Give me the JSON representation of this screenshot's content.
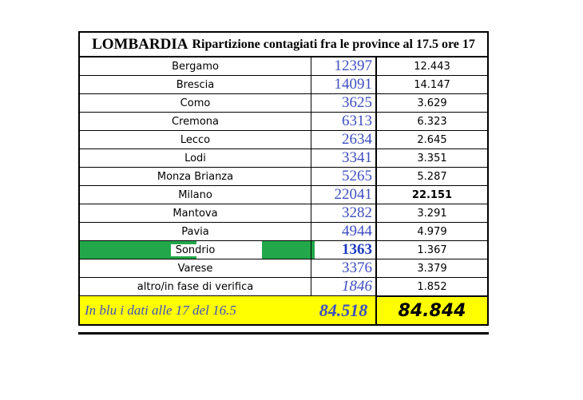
{
  "title": {
    "region": "LOMBARDIA",
    "subtitle": "Ripartizione contagiati fra le province al 17.5 ore 17"
  },
  "rows": [
    {
      "province": "Bergamo",
      "old": "12397",
      "new": "12.443"
    },
    {
      "province": "Brescia",
      "old": "14091",
      "new": "14.147"
    },
    {
      "province": "Como",
      "old": "3625",
      "new": "3.629"
    },
    {
      "province": "Cremona",
      "old": "6313",
      "new": "6.323"
    },
    {
      "province": "Lecco",
      "old": "2634",
      "new": "2.645"
    },
    {
      "province": "Lodi",
      "old": "3341",
      "new": "3.351"
    },
    {
      "province": "Monza Brianza",
      "old": "5265",
      "new": "5.287"
    },
    {
      "province": "Milano",
      "old": "22041",
      "new": "22.151"
    },
    {
      "province": "Mantova",
      "old": "3282",
      "new": "3.291"
    },
    {
      "province": "Pavia",
      "old": "4944",
      "new": "4.979"
    },
    {
      "province": "Sondrio",
      "old": "1363",
      "new": "1.367"
    },
    {
      "province": "Varese",
      "old": "3376",
      "new": "3.379"
    },
    {
      "province": "altro/in fase di verifica",
      "old": "1846",
      "new": "1.852"
    }
  ],
  "footer": {
    "note": "In blu i dati alle 17 del 16.5",
    "old_total": "84.518",
    "new_total": "84.844"
  },
  "colors": {
    "blue_text": "#3f4fc0",
    "highlight_yellow": "#ffff00",
    "sondrio_green": "#22a84a"
  }
}
